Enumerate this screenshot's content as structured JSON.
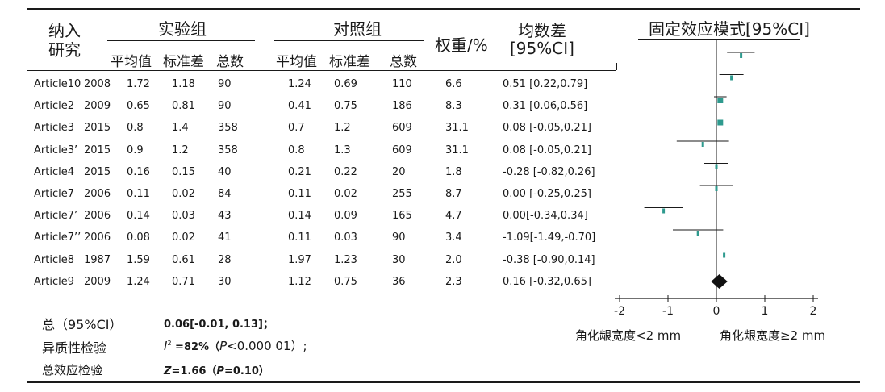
{
  "table": {
    "col_study": "纳入\n研究",
    "col_study_l1": "纳入",
    "col_study_l2": "研究",
    "exp_group": "实验组",
    "ctrl_group": "对照组",
    "weight": "权重/%",
    "md_l1": "均数差",
    "md_l2": "[95%CI]",
    "forest_title": "固定效应模式[95%CI]",
    "sub_mean": "平均值",
    "sub_sd": "标准差",
    "sub_total": "总数",
    "rows": [
      {
        "study": "Article10",
        "year": "2008",
        "em": "1.72",
        "esd": "1.18",
        "en": "90",
        "cm": "1.24",
        "csd": "0.69",
        "cn": "110",
        "w": "6.6",
        "md": "0.51 [0.22,0.79]"
      },
      {
        "study": "Article2",
        "year": "2009",
        "em": "0.65",
        "esd": "0.81",
        "en": "90",
        "cm": "0.41",
        "csd": "0.75",
        "cn": "186",
        "w": "8.3",
        "md": "0.31 [0.06,0.56]"
      },
      {
        "study": "Article3",
        "year": "2015",
        "em": "0.8",
        "esd": "1.4",
        "en": "358",
        "cm": "0.7",
        "csd": "1.2",
        "cn": "609",
        "w": "31.1",
        "md": "0.08 [-0.05,0.21]"
      },
      {
        "study": "Article3’",
        "year": "2015",
        "em": "0.9",
        "esd": "1.2",
        "en": "358",
        "cm": "0.8",
        "csd": "1.3",
        "cn": "609",
        "w": "31.1",
        "md": "0.08 [-0.05,0.21]"
      },
      {
        "study": "Article4",
        "year": "2015",
        "em": "0.16",
        "esd": "0.15",
        "en": "40",
        "cm": "0.21",
        "csd": "0.22",
        "cn": "20",
        "w": "1.8",
        "md": "-0.28 [-0.82,0.26]"
      },
      {
        "study": "Article7",
        "year": "2006",
        "em": "0.11",
        "esd": "0.02",
        "en": "84",
        "cm": "0.11",
        "csd": "0.02",
        "cn": "255",
        "w": "8.7",
        "md": "0.00 [-0.25,0.25]"
      },
      {
        "study": "Article7’",
        "year": "2006",
        "em": "0.14",
        "esd": "0.03",
        "en": "43",
        "cm": "0.14",
        "csd": "0.09",
        "cn": "165",
        "w": "4.7",
        "md": "0.00[-0.34,0.34]"
      },
      {
        "study": "Article7’’",
        "year": "2006",
        "em": "0.08",
        "esd": "0.02",
        "en": "41",
        "cm": "0.11",
        "csd": "0.03",
        "cn": "90",
        "w": "3.4",
        "md": "-1.09[-1.49,-0.70]"
      },
      {
        "study": "Article8",
        "year": "1987",
        "em": "1.59",
        "esd": "0.61",
        "en": "28",
        "cm": "1.97",
        "csd": "1.23",
        "cn": "30",
        "w": "2.0",
        "md": "-0.38 [-0.90,0.14]"
      },
      {
        "study": "Article9",
        "year": "2009",
        "em": "1.24",
        "esd": "0.71",
        "en": "30",
        "cm": "1.12",
        "csd": "0.75",
        "cn": "36",
        "w": "2.3",
        "md": "0.16 [-0.32,0.65]"
      }
    ],
    "total_label": "总（95%CI）",
    "total_value": "0.06[-0.01, 0.13]；",
    "het_label": "异质性检验",
    "het_i": "I",
    "het_sup": "2",
    "het_value": " =82%（",
    "het_p": "P",
    "het_pval": "<0.000 01）;",
    "effect_label": "总效应检验",
    "effect_z": "Z",
    "effect_value": "=1.66（",
    "effect_p": "P",
    "effect_pval": "=0.10）",
    "x_left_label": "角化龈宽度<2 mm",
    "x_right_label": "角化龈宽度≥2 mm"
  },
  "chart_data": {
    "type": "forest",
    "title": "固定效应模式[95%CI]",
    "xlim": [
      -2,
      2
    ],
    "xticks": [
      "-2",
      "-1",
      "0",
      "1",
      "2"
    ],
    "xtick_values": [
      -2,
      -1,
      0,
      1,
      2
    ],
    "x_left_label": "角化龈宽度<2 mm",
    "x_right_label": "角化龈宽度≥2 mm",
    "marker_color": "#2e9a8e",
    "line_color": "#1a1a1a",
    "studies": [
      {
        "study": "Article10",
        "md": 0.51,
        "lo": 0.22,
        "hi": 0.79
      },
      {
        "study": "Article2",
        "md": 0.31,
        "lo": 0.06,
        "hi": 0.56
      },
      {
        "study": "Article3",
        "md": 0.08,
        "lo": -0.05,
        "hi": 0.21
      },
      {
        "study": "Article3’",
        "md": 0.08,
        "lo": -0.05,
        "hi": 0.21
      },
      {
        "study": "Article4",
        "md": -0.28,
        "lo": -0.82,
        "hi": 0.26
      },
      {
        "study": "Article7",
        "md": 0.0,
        "lo": -0.25,
        "hi": 0.25
      },
      {
        "study": "Article7’",
        "md": 0.0,
        "lo": -0.34,
        "hi": 0.34
      },
      {
        "study": "Article7’’",
        "md": -1.09,
        "lo": -1.49,
        "hi": -0.7
      },
      {
        "study": "Article8",
        "md": -0.38,
        "lo": -0.9,
        "hi": 0.14
      },
      {
        "study": "Article9",
        "md": 0.16,
        "lo": -0.32,
        "hi": 0.65
      }
    ],
    "pooled": {
      "md": 0.06,
      "lo": -0.01,
      "hi": 0.13
    }
  }
}
